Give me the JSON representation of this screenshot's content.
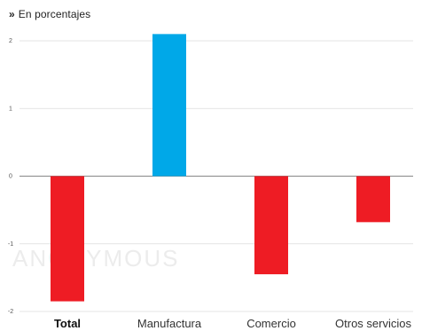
{
  "subtitle": {
    "marker": "»",
    "text": "En porcentajes"
  },
  "watermark": "ANONYMOUS",
  "chart_data": {
    "type": "bar",
    "title": "",
    "xlabel": "",
    "ylabel": "",
    "categories": [
      "Total",
      "Manufactura",
      "Comercio",
      "Otros servicios"
    ],
    "values": [
      -1.85,
      2.1,
      -1.45,
      -0.68
    ],
    "colors": [
      "#ee1c24",
      "#00a8e8",
      "#ee1c24",
      "#ee1c24"
    ],
    "ylim": [
      -2,
      2
    ],
    "yticks": [
      2,
      1,
      0,
      -1,
      -2
    ],
    "grid": true
  }
}
